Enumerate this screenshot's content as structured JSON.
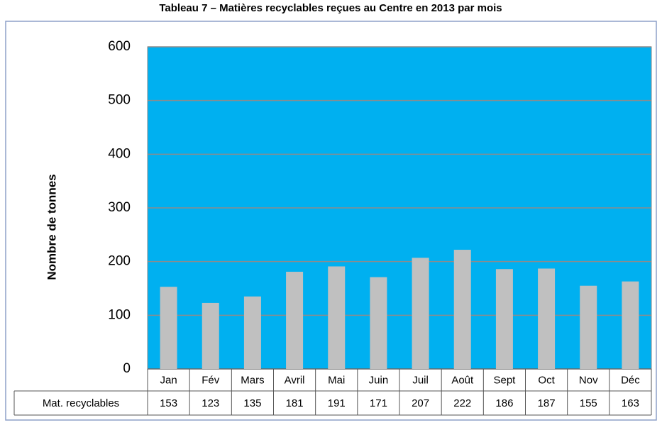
{
  "chart_data": {
    "type": "bar",
    "title": "Tableau 7 – Matières recyclables reçues au Centre en 2013 par mois",
    "y_label": "Nombre de tonnes",
    "categories": [
      "Jan",
      "Fév",
      "Mars",
      "Avril",
      "Mai",
      "Juin",
      "Juil",
      "Août",
      "Sept",
      "Oct",
      "Nov",
      "Déc"
    ],
    "series": [
      {
        "name": "Mat. recyclables",
        "color": "#c0c0c0",
        "values": [
          153,
          123,
          135,
          181,
          191,
          171,
          207,
          222,
          186,
          187,
          155,
          163
        ]
      }
    ],
    "ylim": [
      0,
      600
    ],
    "yticks": [
      0,
      100,
      200,
      300,
      400,
      500,
      600
    ],
    "grid": true,
    "plot_color": "#00b0f0"
  }
}
